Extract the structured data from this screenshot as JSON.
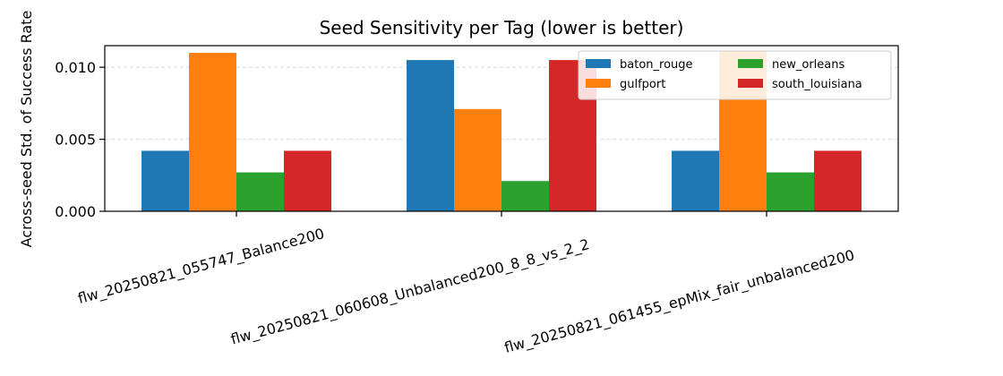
{
  "chart_data": {
    "type": "bar",
    "title": "Seed Sensitivity per Tag (lower is better)",
    "xlabel": "",
    "ylabel": "Across-seed Std. of Success Rate",
    "ylim": [
      0,
      0.0115
    ],
    "yticks": [
      0.0,
      0.005,
      0.01
    ],
    "ytick_labels": [
      "0.000",
      "0.005",
      "0.010"
    ],
    "grid": "horizontal dashed",
    "legend_position": "top-right",
    "legend_columns": 2,
    "categories": [
      "flw_20250821_055747_Balance200",
      "flw_20250821_060608_Unbalanced200_8_8_vs_2_2",
      "flw_20250821_061455_epMix_fair_unbalanced200"
    ],
    "series": [
      {
        "name": "baton_rouge",
        "color": "#1f77b4",
        "values": [
          0.0042,
          0.0105,
          0.0042
        ]
      },
      {
        "name": "gulfport",
        "color": "#ff7f0e",
        "values": [
          0.011,
          0.0071,
          0.0111
        ]
      },
      {
        "name": "new_orleans",
        "color": "#2ca02c",
        "values": [
          0.0027,
          0.0021,
          0.0027
        ]
      },
      {
        "name": "south_louisiana",
        "color": "#d62728",
        "values": [
          0.0042,
          0.0105,
          0.0042
        ]
      }
    ]
  }
}
